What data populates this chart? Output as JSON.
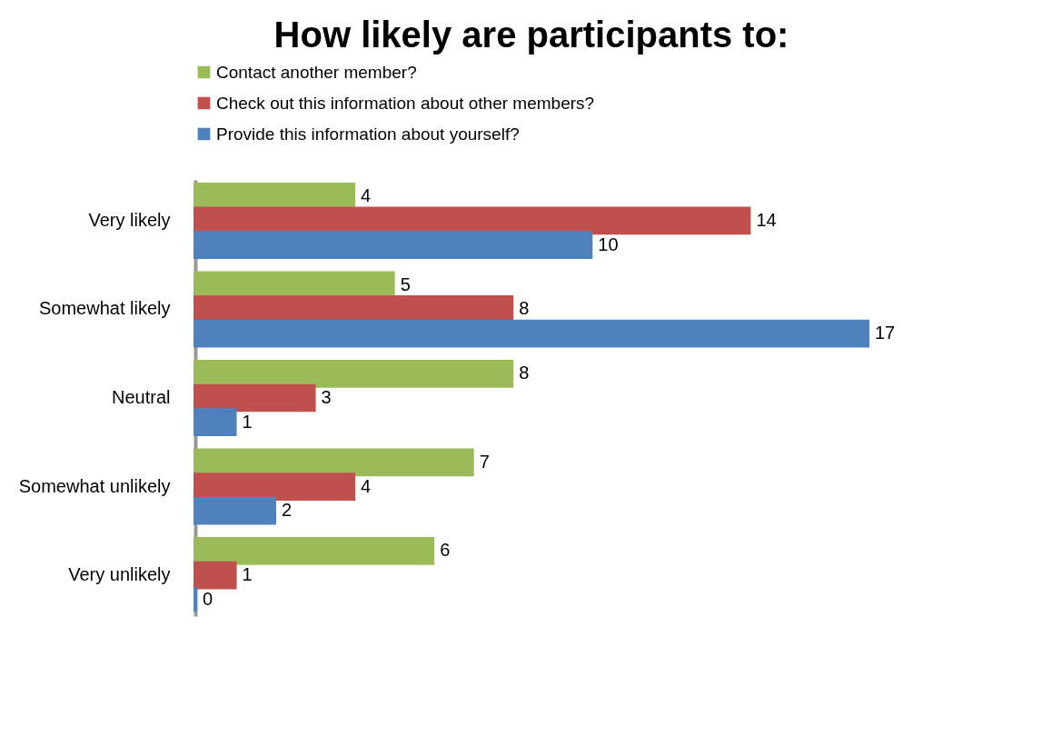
{
  "chart_data": {
    "type": "bar",
    "orientation": "horizontal",
    "title": "How likely are participants to:",
    "categories": [
      "Very likely",
      "Somewhat likely",
      "Neutral",
      "Somewhat unlikely",
      "Very unlikely"
    ],
    "series": [
      {
        "name": "Contact another member?",
        "color": "#9bbb59",
        "values": [
          4,
          5,
          8,
          7,
          6
        ]
      },
      {
        "name": "Check out this information about other members?",
        "color": "#c0504d",
        "values": [
          14,
          8,
          3,
          4,
          1
        ]
      },
      {
        "name": "Provide this information about yourself?",
        "color": "#4f81bd",
        "values": [
          10,
          17,
          1,
          2,
          0
        ]
      }
    ],
    "data_labels": true,
    "legend": "top"
  }
}
